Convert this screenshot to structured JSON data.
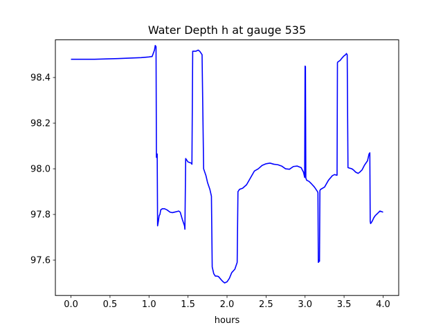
{
  "chart_data": {
    "type": "line",
    "title": "Water Depth h at gauge 535",
    "xlabel": "hours",
    "ylabel": "",
    "xlim": [
      -0.2,
      4.2
    ],
    "ylim": [
      97.445,
      98.565
    ],
    "xticks": [
      0.0,
      0.5,
      1.0,
      1.5,
      2.0,
      2.5,
      3.0,
      3.5,
      4.0
    ],
    "xtick_labels": [
      "0.0",
      "0.5",
      "1.0",
      "1.5",
      "2.0",
      "2.5",
      "3.0",
      "3.5",
      "4.0"
    ],
    "yticks": [
      97.6,
      97.8,
      98.0,
      98.2,
      98.4
    ],
    "ytick_labels": [
      "97.6",
      "97.8",
      "98.0",
      "98.2",
      "98.4"
    ],
    "grid": false,
    "series": [
      {
        "color": "#0000ff",
        "x": [
          0.0,
          0.3,
          0.6,
          0.9,
          1.0,
          1.04,
          1.07,
          1.08,
          1.09,
          1.095,
          1.1,
          1.105,
          1.11,
          1.12,
          1.13,
          1.14,
          1.15,
          1.17,
          1.2,
          1.23,
          1.27,
          1.3,
          1.35,
          1.38,
          1.4,
          1.43,
          1.455,
          1.46,
          1.47,
          1.5,
          1.54,
          1.55,
          1.56,
          1.57,
          1.6,
          1.63,
          1.65,
          1.68,
          1.7,
          1.71,
          1.73,
          1.75,
          1.78,
          1.8,
          1.81,
          1.83,
          1.85,
          1.87,
          1.89,
          1.91,
          1.93,
          1.95,
          1.97,
          2.0,
          2.03,
          2.06,
          2.1,
          2.13,
          2.14,
          2.15,
          2.16,
          2.2,
          2.25,
          2.3,
          2.35,
          2.4,
          2.45,
          2.5,
          2.55,
          2.6,
          2.65,
          2.7,
          2.75,
          2.8,
          2.85,
          2.9,
          2.95,
          2.98,
          2.995,
          3.0,
          3.005,
          3.01,
          3.02,
          3.05,
          3.08,
          3.12,
          3.15,
          3.16,
          3.165,
          3.17,
          3.175,
          3.18,
          3.185,
          3.19,
          3.2,
          3.25,
          3.3,
          3.35,
          3.38,
          3.4,
          3.41,
          3.415,
          3.42,
          3.45,
          3.48,
          3.5,
          3.52,
          3.53,
          3.54,
          3.55,
          3.6,
          3.62,
          3.65,
          3.68,
          3.7,
          3.73,
          3.76,
          3.8,
          3.81,
          3.82,
          3.83,
          3.835,
          3.84,
          3.86,
          3.88,
          3.9,
          3.93,
          3.96,
          4.0
        ],
        "values": [
          98.48,
          98.48,
          98.483,
          98.487,
          98.49,
          98.492,
          98.52,
          98.54,
          98.535,
          98.05,
          98.06,
          98.065,
          97.75,
          97.77,
          97.795,
          97.8,
          97.82,
          97.825,
          97.825,
          97.82,
          97.81,
          97.808,
          97.812,
          97.815,
          97.81,
          97.775,
          97.75,
          97.735,
          98.045,
          98.03,
          98.025,
          98.02,
          98.515,
          98.515,
          98.515,
          98.52,
          98.515,
          98.5,
          98.0,
          97.99,
          97.97,
          97.94,
          97.91,
          97.88,
          97.57,
          97.54,
          97.53,
          97.53,
          97.528,
          97.52,
          97.512,
          97.505,
          97.5,
          97.505,
          97.52,
          97.545,
          97.56,
          97.59,
          97.9,
          97.905,
          97.91,
          97.915,
          97.93,
          97.96,
          97.99,
          98.0,
          98.015,
          98.022,
          98.025,
          98.02,
          98.018,
          98.012,
          98.0,
          97.998,
          98.01,
          98.012,
          98.005,
          97.985,
          97.962,
          98.45,
          98.448,
          97.96,
          97.95,
          97.945,
          97.935,
          97.92,
          97.905,
          97.9,
          97.895,
          97.59,
          97.592,
          97.6,
          97.595,
          97.905,
          97.91,
          97.92,
          97.95,
          97.97,
          97.975,
          97.972,
          97.972,
          98.465,
          98.468,
          98.475,
          98.488,
          98.495,
          98.5,
          98.505,
          98.5,
          98.005,
          98.0,
          97.995,
          97.985,
          97.98,
          97.985,
          97.995,
          98.015,
          98.035,
          98.05,
          98.065,
          98.07,
          97.77,
          97.76,
          97.77,
          97.785,
          97.795,
          97.805,
          97.815,
          97.81
        ]
      }
    ]
  }
}
